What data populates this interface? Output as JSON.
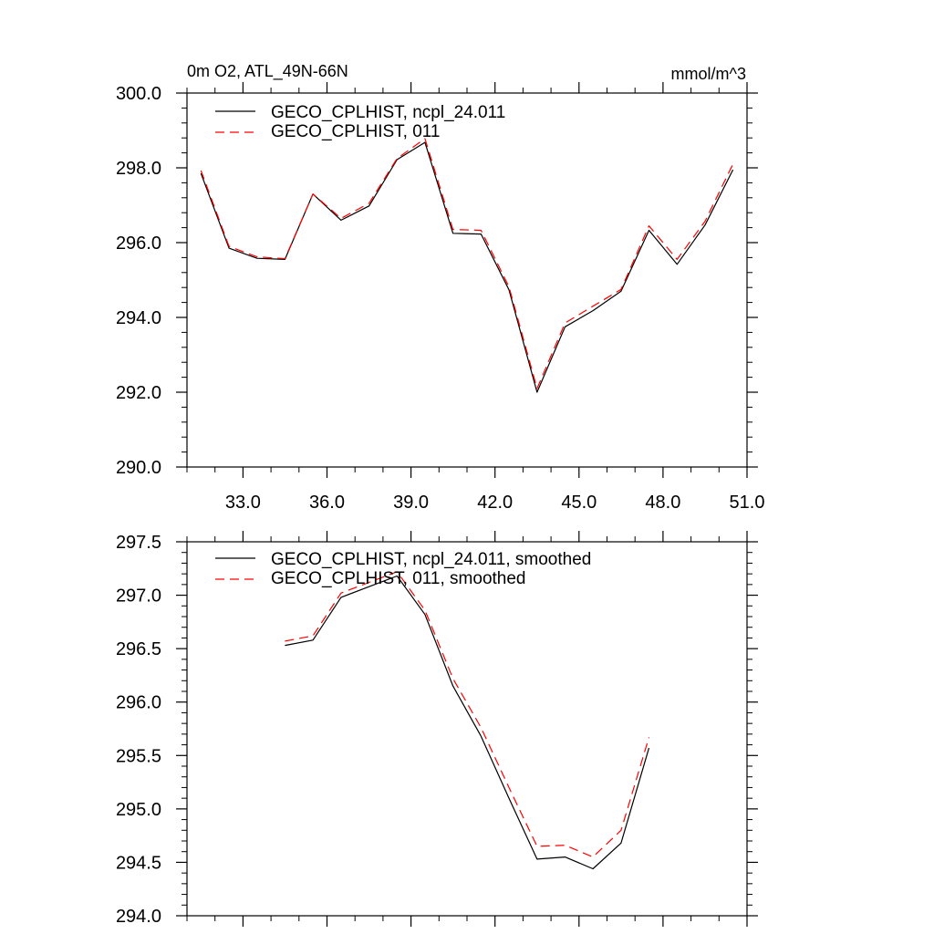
{
  "chart_data": [
    {
      "type": "line",
      "title": "0m O2, ATL_49N-66N",
      "units": "mmol/m^3",
      "xlim": [
        31.0,
        51.0
      ],
      "ylim": [
        290.0,
        300.0
      ],
      "x_ticks": [
        33.0,
        36.0,
        39.0,
        42.0,
        45.0,
        48.0,
        51.0
      ],
      "x_tick_labels": [
        "33.0",
        "36.0",
        "39.0",
        "42.0",
        "45.0",
        "48.0",
        "51.0"
      ],
      "y_ticks": [
        290.0,
        292.0,
        294.0,
        296.0,
        298.0,
        300.0
      ],
      "y_tick_labels": [
        "290.0",
        "292.0",
        "294.0",
        "296.0",
        "298.0",
        "300.0"
      ],
      "x": [
        31.5,
        32.5,
        33.5,
        34.5,
        35.5,
        36.5,
        37.5,
        38.5,
        39.5,
        40.5,
        41.5,
        42.5,
        43.5,
        44.5,
        45.5,
        46.5,
        47.5,
        48.5,
        49.5,
        50.5
      ],
      "series": [
        {
          "name": "GECO_CPLHIST, ncpl_24.011",
          "color": "#000000",
          "dash": "solid",
          "values": [
            297.85,
            295.85,
            295.58,
            295.55,
            297.3,
            296.6,
            296.98,
            298.22,
            298.68,
            296.25,
            296.23,
            294.74,
            292.0,
            293.75,
            294.18,
            294.7,
            296.33,
            295.42,
            296.47,
            297.95
          ]
        },
        {
          "name": "GECO_CPLHIST, 011",
          "color": "#ff0000",
          "dash": "dashed",
          "values": [
            297.93,
            295.9,
            295.62,
            295.57,
            297.3,
            296.65,
            297.05,
            298.25,
            298.78,
            296.35,
            296.33,
            294.82,
            292.1,
            293.85,
            294.3,
            294.75,
            296.45,
            295.55,
            296.57,
            298.1
          ]
        }
      ]
    },
    {
      "type": "line",
      "title": "",
      "units": "",
      "xlim": [
        31.0,
        51.0
      ],
      "ylim": [
        294.0,
        297.5
      ],
      "x_ticks": [
        33.0,
        36.0,
        39.0,
        42.0,
        45.0,
        48.0,
        51.0
      ],
      "y_ticks": [
        294.0,
        294.5,
        295.0,
        295.5,
        296.0,
        296.5,
        297.0,
        297.5
      ],
      "y_tick_labels": [
        "294.0",
        "294.5",
        "295.0",
        "295.5",
        "296.0",
        "296.5",
        "297.0",
        "297.5"
      ],
      "x": [
        34.5,
        35.5,
        36.5,
        37.5,
        38.5,
        39.5,
        40.5,
        41.5,
        42.5,
        43.5,
        44.5,
        45.5,
        46.5,
        47.5
      ],
      "series": [
        {
          "name": "GECO_CPLHIST, ncpl_24.011, smoothed",
          "color": "#000000",
          "dash": "solid",
          "values": [
            296.53,
            296.58,
            296.98,
            297.08,
            297.18,
            296.82,
            296.15,
            295.68,
            295.1,
            294.53,
            294.55,
            294.44,
            294.68,
            295.57
          ]
        },
        {
          "name": "GECO_CPLHIST, 011, smoothed",
          "color": "#ff0000",
          "dash": "dashed",
          "values": [
            296.57,
            296.62,
            297.02,
            297.12,
            297.22,
            296.86,
            296.22,
            295.76,
            295.2,
            294.65,
            294.66,
            294.55,
            294.8,
            295.67
          ]
        }
      ]
    }
  ]
}
